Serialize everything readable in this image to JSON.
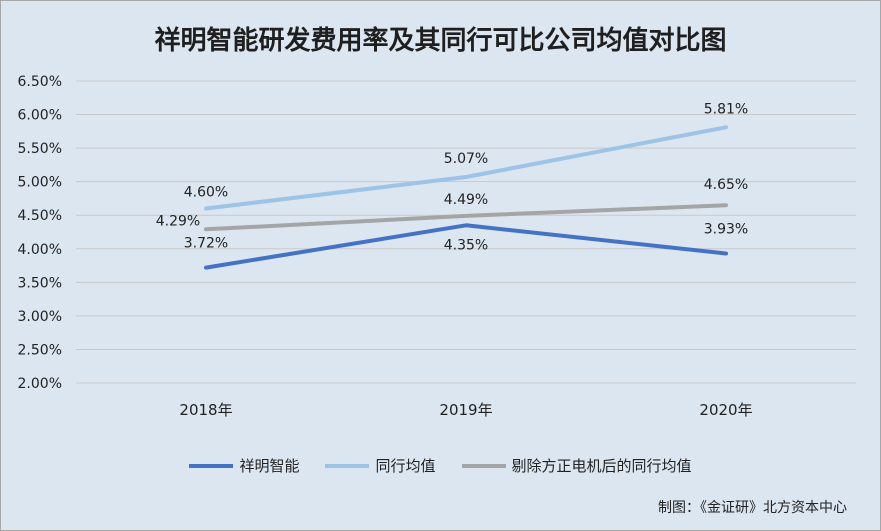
{
  "chart_data": {
    "type": "line",
    "title": "祥明智能研发费用率及其同行可比公司均值对比图",
    "categories": [
      "2018年",
      "2019年",
      "2020年"
    ],
    "yticks": [
      "2.00%",
      "2.50%",
      "3.00%",
      "3.50%",
      "4.00%",
      "4.50%",
      "5.00%",
      "5.50%",
      "6.00%",
      "6.50%"
    ],
    "ylim": [
      2.0,
      6.5
    ],
    "grid": true,
    "legend_position": "bottom",
    "series": [
      {
        "name": "祥明智能",
        "color": "#4472c4",
        "values": [
          3.72,
          4.35,
          3.93
        ],
        "labels": [
          "3.72%",
          "4.35%",
          "3.93%"
        ]
      },
      {
        "name": "同行均值",
        "color": "#9dc3e6",
        "values": [
          4.6,
          5.07,
          5.81
        ],
        "labels": [
          "4.60%",
          "5.07%",
          "5.81%"
        ]
      },
      {
        "name": "剔除方正电机后的同行均值",
        "color": "#a5a5a5",
        "values": [
          4.29,
          4.49,
          4.65
        ],
        "labels": [
          "4.29%",
          "4.49%",
          "4.65%"
        ]
      }
    ]
  },
  "source": "制图：《金证研》北方资本中心"
}
